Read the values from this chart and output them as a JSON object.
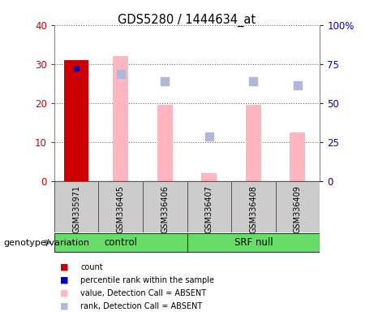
{
  "title": "GDS5280 / 1444634_at",
  "samples": [
    "GSM335971",
    "GSM336405",
    "GSM336406",
    "GSM336407",
    "GSM336408",
    "GSM336409"
  ],
  "bar_values": [
    31,
    null,
    null,
    null,
    null,
    null
  ],
  "bar_color": "#cc0000",
  "blue_marker_values": [
    29,
    null,
    null,
    null,
    null,
    null
  ],
  "blue_marker_color": "#0000cc",
  "pink_bar_values": [
    null,
    32,
    19.5,
    2,
    19.5,
    12.5
  ],
  "pink_bar_color": "#ffb6c1",
  "blue_sq_values": [
    null,
    27.5,
    25.5,
    11.5,
    25.5,
    24.5
  ],
  "blue_sq_color": "#b0b8d8",
  "ylim_left": [
    0,
    40
  ],
  "ylim_right": [
    0,
    100
  ],
  "yticks_left": [
    0,
    10,
    20,
    30,
    40
  ],
  "yticks_right": [
    0,
    25,
    50,
    75,
    100
  ],
  "ytick_labels_left": [
    "0",
    "10",
    "20",
    "30",
    "40"
  ],
  "ytick_labels_right": [
    "0",
    "25",
    "50",
    "75",
    "100%"
  ],
  "left_yaxis_color": "#cc0000",
  "right_yaxis_color": "#0000cc",
  "sample_box_color": "#cccccc",
  "group_defs": [
    {
      "label": "control",
      "start": 0,
      "end": 3,
      "color": "#66dd66"
    },
    {
      "label": "SRF null",
      "start": 3,
      "end": 6,
      "color": "#66dd66"
    }
  ],
  "legend_items": [
    {
      "label": "count",
      "color": "#cc0000"
    },
    {
      "label": "percentile rank within the sample",
      "color": "#0000cc"
    },
    {
      "label": "value, Detection Call = ABSENT",
      "color": "#ffb6c1"
    },
    {
      "label": "rank, Detection Call = ABSENT",
      "color": "#b0b8d8"
    }
  ],
  "genotype_label": "genotype/variation"
}
